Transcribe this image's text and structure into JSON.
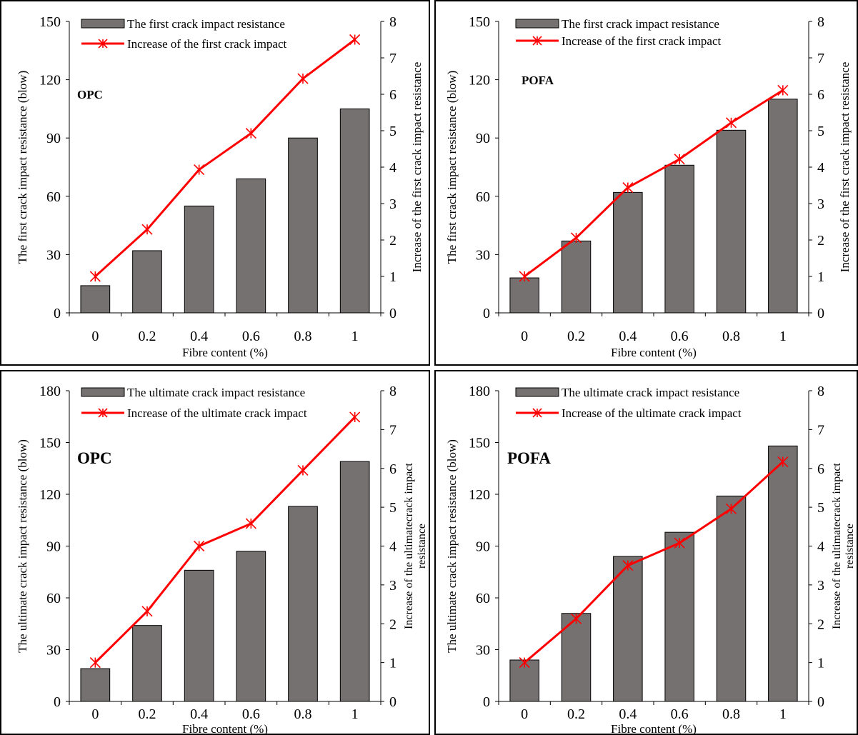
{
  "colors": {
    "bar_fill": "#767171",
    "bar_stroke": "#000000",
    "line": "#ff0000",
    "marker": "#ff0000",
    "axis": "#000000"
  },
  "chart_data": [
    {
      "type": "bar",
      "label": "OPC",
      "xlabel": "Fibre content (%)",
      "ylabel": "The first crack impact resistance (blow)",
      "y2label": [
        "Increase of the first crack impact resistance"
      ],
      "categories": [
        "0",
        "0.2",
        "0.4",
        "0.6",
        "0.8",
        "1"
      ],
      "ylim": [
        0,
        150
      ],
      "yticks": [
        0,
        30,
        60,
        90,
        120,
        150
      ],
      "y2lim": [
        0,
        8
      ],
      "y2ticks": [
        0,
        1,
        2,
        3,
        4,
        5,
        6,
        7,
        8
      ],
      "legend_position": "top",
      "series": [
        {
          "name": "The first crack impact resistance",
          "type": "bar",
          "axis": "left",
          "values": [
            14,
            32,
            55,
            69,
            90,
            105
          ]
        },
        {
          "name": "Increase of the first crack impact",
          "type": "line",
          "axis": "right",
          "values": [
            1.0,
            2.29,
            3.93,
            4.93,
            6.43,
            7.5
          ]
        }
      ]
    },
    {
      "type": "bar",
      "label": "POFA",
      "xlabel": "Fibre content (%)",
      "ylabel": "The first crack impact resistance (blow)",
      "y2label": [
        "Increase of the first crack impact resistance"
      ],
      "categories": [
        "0",
        "0.2",
        "0.4",
        "0.6",
        "0.8",
        "1"
      ],
      "ylim": [
        0,
        150
      ],
      "yticks": [
        0,
        30,
        60,
        90,
        120,
        150
      ],
      "y2lim": [
        0,
        8
      ],
      "y2ticks": [
        0,
        1,
        2,
        3,
        4,
        5,
        6,
        7,
        8
      ],
      "legend_position": "top",
      "series": [
        {
          "name": "The first crack impact resistance",
          "type": "bar",
          "axis": "left",
          "values": [
            18,
            37,
            62,
            76,
            94,
            110
          ]
        },
        {
          "name": "Increase of the first crack impact",
          "type": "line",
          "axis": "right",
          "values": [
            1.0,
            2.06,
            3.44,
            4.22,
            5.22,
            6.11
          ]
        }
      ]
    },
    {
      "type": "bar",
      "label": "OPC",
      "xlabel": "Fibre content (%)",
      "ylabel": "The ultimate crack impact resistance (blow)",
      "y2label": [
        "Increase of the ultimatecrack impact",
        "resistance"
      ],
      "categories": [
        "0",
        "0.2",
        "0.4",
        "0.6",
        "0.8",
        "1"
      ],
      "ylim": [
        0,
        180
      ],
      "yticks": [
        0,
        30,
        60,
        90,
        120,
        150,
        180
      ],
      "y2lim": [
        0,
        8
      ],
      "y2ticks": [
        0,
        1,
        2,
        3,
        4,
        5,
        6,
        7,
        8
      ],
      "legend_position": "top",
      "series": [
        {
          "name": "The ultimate crack impact resistance",
          "type": "bar",
          "axis": "left",
          "values": [
            19,
            44,
            76,
            87,
            113,
            139
          ]
        },
        {
          "name": "Increase of the ultimate crack impact",
          "type": "line",
          "axis": "right",
          "values": [
            1.0,
            2.32,
            4.0,
            4.58,
            5.95,
            7.32
          ]
        }
      ]
    },
    {
      "type": "bar",
      "label": "POFA",
      "xlabel": "Fibre content (%)",
      "ylabel": "The ultimate crack impact resistance (blow)",
      "y2label": [
        "Increase of the ultimatecrack impact",
        "resistance"
      ],
      "categories": [
        "0",
        "0.2",
        "0.4",
        "0.6",
        "0.8",
        "1"
      ],
      "ylim": [
        0,
        180
      ],
      "yticks": [
        0,
        30,
        60,
        90,
        120,
        150,
        180
      ],
      "y2lim": [
        0,
        8
      ],
      "y2ticks": [
        0,
        1,
        2,
        3,
        4,
        5,
        6,
        7,
        8
      ],
      "legend_position": "top",
      "series": [
        {
          "name": "The ultimate crack impact resistance",
          "type": "bar",
          "axis": "left",
          "values": [
            24,
            51,
            84,
            98,
            119,
            148
          ]
        },
        {
          "name": "Increase of the ultimate crack impact",
          "type": "line",
          "axis": "right",
          "values": [
            1.0,
            2.13,
            3.5,
            4.08,
            4.96,
            6.17
          ]
        }
      ]
    }
  ]
}
